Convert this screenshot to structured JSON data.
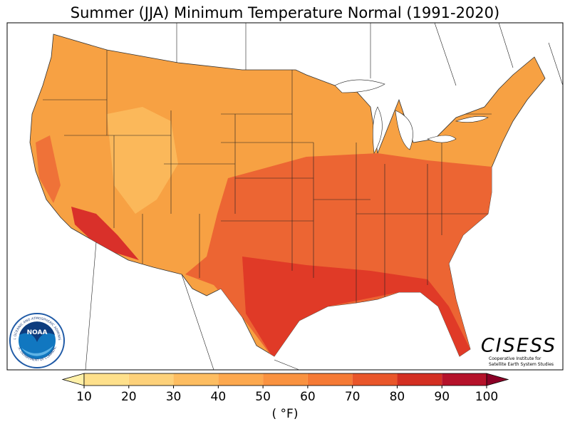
{
  "title": "Summer (JJA) Minimum Temperature Normal (1991-2020)",
  "colorbar": {
    "label": "( °F)",
    "range": [
      10,
      100
    ],
    "ticks": [
      10,
      20,
      30,
      40,
      50,
      60,
      70,
      80,
      90,
      100
    ],
    "colors": [
      "#fff0a8",
      "#fee08b",
      "#fdd17a",
      "#fdbd61",
      "#fca84e",
      "#f99240",
      "#f57a35",
      "#e9562a",
      "#d32f22",
      "#b5122a",
      "#8b0026"
    ]
  },
  "logos": {
    "noaa": {
      "name": "NOAA",
      "ring_top": "NATIONAL OCEANIC AND ATMOSPHERIC ADMINISTRATION",
      "ring_bottom": "U.S. DEPARTMENT OF COMMERCE"
    },
    "cisess": {
      "name": "CISESS",
      "lines": [
        "Cooperative Institute for",
        "Satellite Earth System Studies"
      ]
    }
  }
}
